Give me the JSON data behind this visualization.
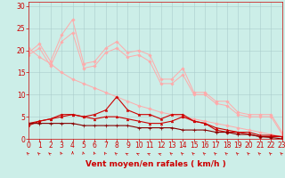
{
  "background_color": "#cceee8",
  "grid_color": "#aacccc",
  "xlabel": "Vent moyen/en rafales ( km/h )",
  "xlabel_color": "#cc0000",
  "xlabel_fontsize": 6.5,
  "tick_color": "#cc0000",
  "tick_fontsize": 5.5,
  "ylim": [
    0,
    31
  ],
  "xlim": [
    0,
    23
  ],
  "yticks": [
    0,
    5,
    10,
    15,
    20,
    25,
    30
  ],
  "xticks": [
    0,
    1,
    2,
    3,
    4,
    5,
    6,
    7,
    8,
    9,
    10,
    11,
    12,
    13,
    14,
    15,
    16,
    17,
    18,
    19,
    20,
    21,
    22,
    23
  ],
  "x": [
    0,
    1,
    2,
    3,
    4,
    5,
    6,
    7,
    8,
    9,
    10,
    11,
    12,
    13,
    14,
    15,
    16,
    17,
    18,
    19,
    20,
    21,
    22,
    23
  ],
  "line1": [
    19.5,
    21.5,
    17.5,
    23.5,
    27.0,
    17.0,
    17.5,
    20.5,
    22.0,
    19.5,
    20.0,
    19.0,
    13.5,
    13.5,
    16.0,
    10.5,
    10.5,
    8.5,
    8.5,
    6.0,
    5.5,
    5.5,
    5.5,
    1.5
  ],
  "line2": [
    19.0,
    20.5,
    16.5,
    22.0,
    24.0,
    16.0,
    16.5,
    19.5,
    20.5,
    18.5,
    19.0,
    17.5,
    12.5,
    12.5,
    14.5,
    10.0,
    10.0,
    8.0,
    7.5,
    5.5,
    5.0,
    5.0,
    5.0,
    1.0
  ],
  "line3": [
    20.5,
    18.5,
    17.0,
    15.0,
    13.5,
    12.5,
    11.5,
    10.5,
    9.5,
    8.5,
    7.5,
    6.8,
    6.0,
    5.5,
    5.0,
    4.5,
    4.0,
    3.5,
    3.0,
    2.5,
    2.0,
    1.5,
    1.0,
    0.5
  ],
  "line4": [
    3.0,
    4.0,
    4.5,
    5.5,
    5.5,
    5.0,
    5.5,
    6.5,
    9.5,
    6.5,
    5.5,
    5.5,
    4.5,
    5.5,
    5.5,
    4.0,
    3.5,
    2.0,
    1.5,
    1.5,
    1.0,
    0.5,
    0.5,
    0.5
  ],
  "line5": [
    3.5,
    4.0,
    4.5,
    5.0,
    5.5,
    5.0,
    4.5,
    5.0,
    5.0,
    4.5,
    4.0,
    3.5,
    3.5,
    4.0,
    5.0,
    4.0,
    3.5,
    2.5,
    2.0,
    1.5,
    1.5,
    0.8,
    0.8,
    0.5
  ],
  "line6": [
    3.5,
    3.5,
    3.5,
    3.5,
    3.5,
    3.0,
    3.0,
    3.0,
    3.0,
    3.0,
    2.5,
    2.5,
    2.5,
    2.5,
    2.0,
    2.0,
    2.0,
    1.5,
    1.5,
    1.0,
    1.0,
    0.5,
    0.3,
    0.0
  ],
  "line1_color": "#ffaaaa",
  "line2_color": "#ffaaaa",
  "line3_color": "#ffaaaa",
  "line4_color": "#cc0000",
  "line5_color": "#cc0000",
  "line6_color": "#880000",
  "arrow_color": "#cc0000",
  "arrow_angles": [
    225,
    230,
    235,
    210,
    180,
    200,
    205,
    215,
    230,
    245,
    245,
    250,
    255,
    230,
    230,
    230,
    230,
    230,
    230,
    230,
    230,
    230,
    230,
    230
  ]
}
